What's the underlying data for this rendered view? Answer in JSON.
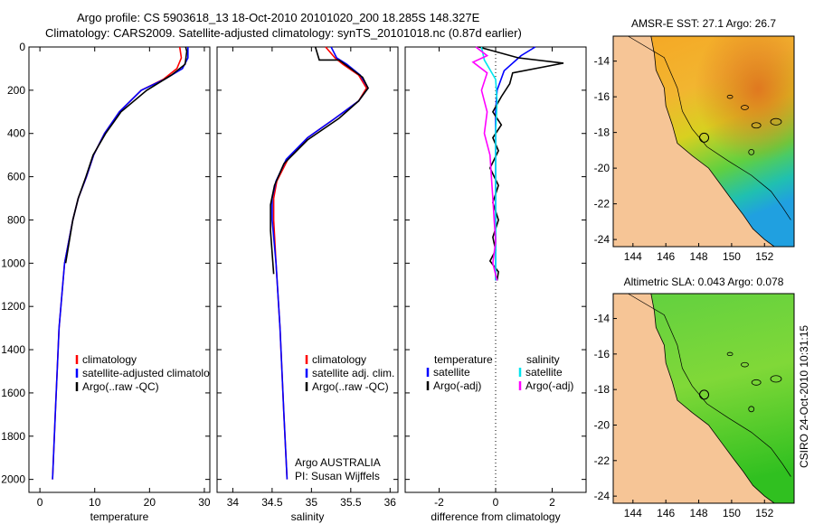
{
  "header": {
    "line1": "Argo profile: CS 5903618_13 18-Oct-2010 20101020_200 18.285S 148.327E",
    "line2": "Climatology: CARS2009. Satellite-adjusted climatology: synTS_20101018.nc (0.87d earlier)"
  },
  "side_label": "CSIRO 24-Oct-2010 10:31:15",
  "colors": {
    "climatology": "#ff0000",
    "satellite": "#0000ff",
    "argo": "#000000",
    "satellite_sal": "#00e5ee",
    "argo_sal_diff": "#ff00ff",
    "land": "#f6c596",
    "ocean_warm": "#f0a030"
  },
  "chart_data": [
    {
      "type": "line",
      "name": "temperature-profile",
      "xlabel": "temperature",
      "ylabel": "",
      "xlim": [
        -2,
        31
      ],
      "ylim": [
        2060,
        0
      ],
      "xticks": [
        0,
        10,
        20,
        30
      ],
      "yticks": [
        0,
        200,
        400,
        600,
        800,
        1000,
        1200,
        1400,
        1600,
        1800,
        2000
      ],
      "legend": [
        "climatology",
        "satellite-adjusted climatology",
        "Argo(..raw -QC)"
      ],
      "series": [
        {
          "name": "climatology",
          "x": [
            25.5,
            25.8,
            25.0,
            22.5,
            18.5,
            14.5,
            11.8,
            9.8,
            8.5,
            7.0,
            6.0,
            4.5,
            3.5,
            2.8,
            2.3
          ],
          "y": [
            0,
            50,
            100,
            150,
            200,
            300,
            400,
            500,
            600,
            700,
            800,
            1000,
            1300,
            1700,
            2000
          ]
        },
        {
          "name": "satellite",
          "x": [
            27.0,
            27.0,
            26.0,
            22.7,
            18.5,
            14.5,
            11.8,
            9.8,
            8.5,
            7.0,
            6.0,
            4.5,
            3.5,
            2.8,
            2.3
          ],
          "y": [
            0,
            50,
            100,
            150,
            200,
            300,
            400,
            500,
            600,
            700,
            800,
            1000,
            1300,
            1700,
            2000
          ]
        },
        {
          "name": "argo",
          "x": [
            26.6,
            26.8,
            26.5,
            24.0,
            19.5,
            14.8,
            12.0,
            9.7,
            8.4,
            7.0,
            6.0,
            4.7
          ],
          "y": [
            0,
            20,
            80,
            130,
            200,
            300,
            400,
            500,
            600,
            700,
            800,
            1000
          ]
        }
      ],
      "annotations": []
    },
    {
      "type": "line",
      "name": "salinity-profile",
      "xlabel": "salinity",
      "xlim": [
        33.8,
        36.1
      ],
      "ylim": [
        2060,
        0
      ],
      "xticks": [
        34,
        34.5,
        35,
        35.5,
        36
      ],
      "legend": [
        "climatology",
        "satellite adj. clim.",
        "Argo(..raw -QC)"
      ],
      "annotations": [
        "Argo AUSTRALIA",
        "PI: Susan Wijffels"
      ],
      "series": [
        {
          "name": "climatology",
          "x": [
            35.18,
            35.3,
            35.4,
            35.6,
            35.7,
            35.6,
            35.3,
            34.95,
            34.7,
            34.56,
            34.52,
            34.52,
            34.55,
            34.6,
            34.65,
            34.69
          ],
          "y": [
            0,
            50,
            80,
            130,
            190,
            250,
            330,
            420,
            520,
            620,
            700,
            800,
            1000,
            1300,
            1700,
            2000
          ]
        },
        {
          "name": "satellite",
          "x": [
            35.25,
            35.32,
            35.45,
            35.62,
            35.72,
            35.6,
            35.3,
            34.95,
            34.68,
            34.55,
            34.5,
            34.5,
            34.55,
            34.6,
            34.65,
            34.69
          ],
          "y": [
            0,
            50,
            80,
            130,
            190,
            250,
            330,
            420,
            520,
            620,
            700,
            800,
            1000,
            1300,
            1700,
            2000
          ]
        },
        {
          "name": "argo",
          "x": [
            35.05,
            35.1,
            35.35,
            35.5,
            35.65,
            35.72,
            35.6,
            35.35,
            34.95,
            34.65,
            34.53,
            34.48,
            34.48,
            34.52
          ],
          "y": [
            0,
            60,
            60,
            100,
            140,
            190,
            250,
            330,
            430,
            540,
            640,
            730,
            850,
            1050
          ]
        }
      ]
    },
    {
      "type": "line",
      "name": "difference-profile",
      "xlabel": "difference from climatology",
      "xlim": [
        -3.2,
        3.2
      ],
      "ylim": [
        2060,
        0
      ],
      "xticks": [
        -2,
        0,
        2
      ],
      "legend_headers": [
        "temperature",
        "salinity"
      ],
      "legend": [
        "satellite",
        "Argo(-adj)",
        "satellite",
        "Argo(-adj)"
      ],
      "series": [
        {
          "name": "temperature-satellite",
          "x": [
            1.4,
            0.9,
            0.3,
            0.05,
            0.0,
            0.0,
            0.0,
            0.0,
            0.0,
            0.0
          ],
          "y": [
            0,
            40,
            110,
            200,
            300,
            450,
            600,
            800,
            1000,
            1080
          ]
        },
        {
          "name": "temperature-argo",
          "x": [
            -0.6,
            0.8,
            2.4,
            0.6,
            0.5,
            0.2,
            -0.1,
            0.2,
            -0.1,
            0.1,
            -0.2,
            0.1,
            -0.1,
            0.1,
            -0.1,
            0.0,
            -0.2,
            0.1,
            0.05
          ],
          "y": [
            0,
            50,
            75,
            120,
            170,
            230,
            300,
            360,
            420,
            480,
            560,
            640,
            720,
            800,
            880,
            940,
            990,
            1040,
            1080
          ]
        },
        {
          "name": "salinity-satellite",
          "x": [
            -0.5,
            -0.4,
            0.0,
            0.05,
            0.0,
            0.0,
            0.0,
            0.0,
            0.0
          ],
          "y": [
            0,
            60,
            150,
            250,
            400,
            600,
            800,
            1000,
            1080
          ]
        },
        {
          "name": "salinity-argo",
          "x": [
            -0.7,
            -0.3,
            -0.8,
            -0.3,
            -0.5,
            -0.3,
            -0.4,
            -0.2,
            -0.15,
            -0.1,
            -0.05,
            0.0,
            -0.1,
            0.05
          ],
          "y": [
            0,
            40,
            70,
            120,
            200,
            300,
            400,
            500,
            600,
            700,
            800,
            900,
            1000,
            1080
          ]
        }
      ]
    },
    {
      "type": "heatmap",
      "name": "sst-map",
      "title": "AMSR-E SST: 27.1  Argo: 26.7",
      "xlim": [
        142.8,
        153.8
      ],
      "ylim": [
        -24.4,
        -12.6
      ],
      "xticks": [
        144,
        146,
        148,
        150,
        152
      ],
      "yticks": [
        -14,
        -16,
        -18,
        -20,
        -22,
        -24
      ],
      "marker": {
        "lon": 148.33,
        "lat": -18.29
      }
    },
    {
      "type": "heatmap",
      "name": "sla-map",
      "title": "Altimetric SLA: 0.043  Argo: 0.078",
      "xlim": [
        142.8,
        153.8
      ],
      "ylim": [
        -24.4,
        -12.6
      ],
      "xticks": [
        144,
        146,
        148,
        150,
        152
      ],
      "yticks": [
        -14,
        -16,
        -18,
        -20,
        -22,
        -24
      ],
      "marker": {
        "lon": 148.33,
        "lat": -18.29
      }
    }
  ]
}
